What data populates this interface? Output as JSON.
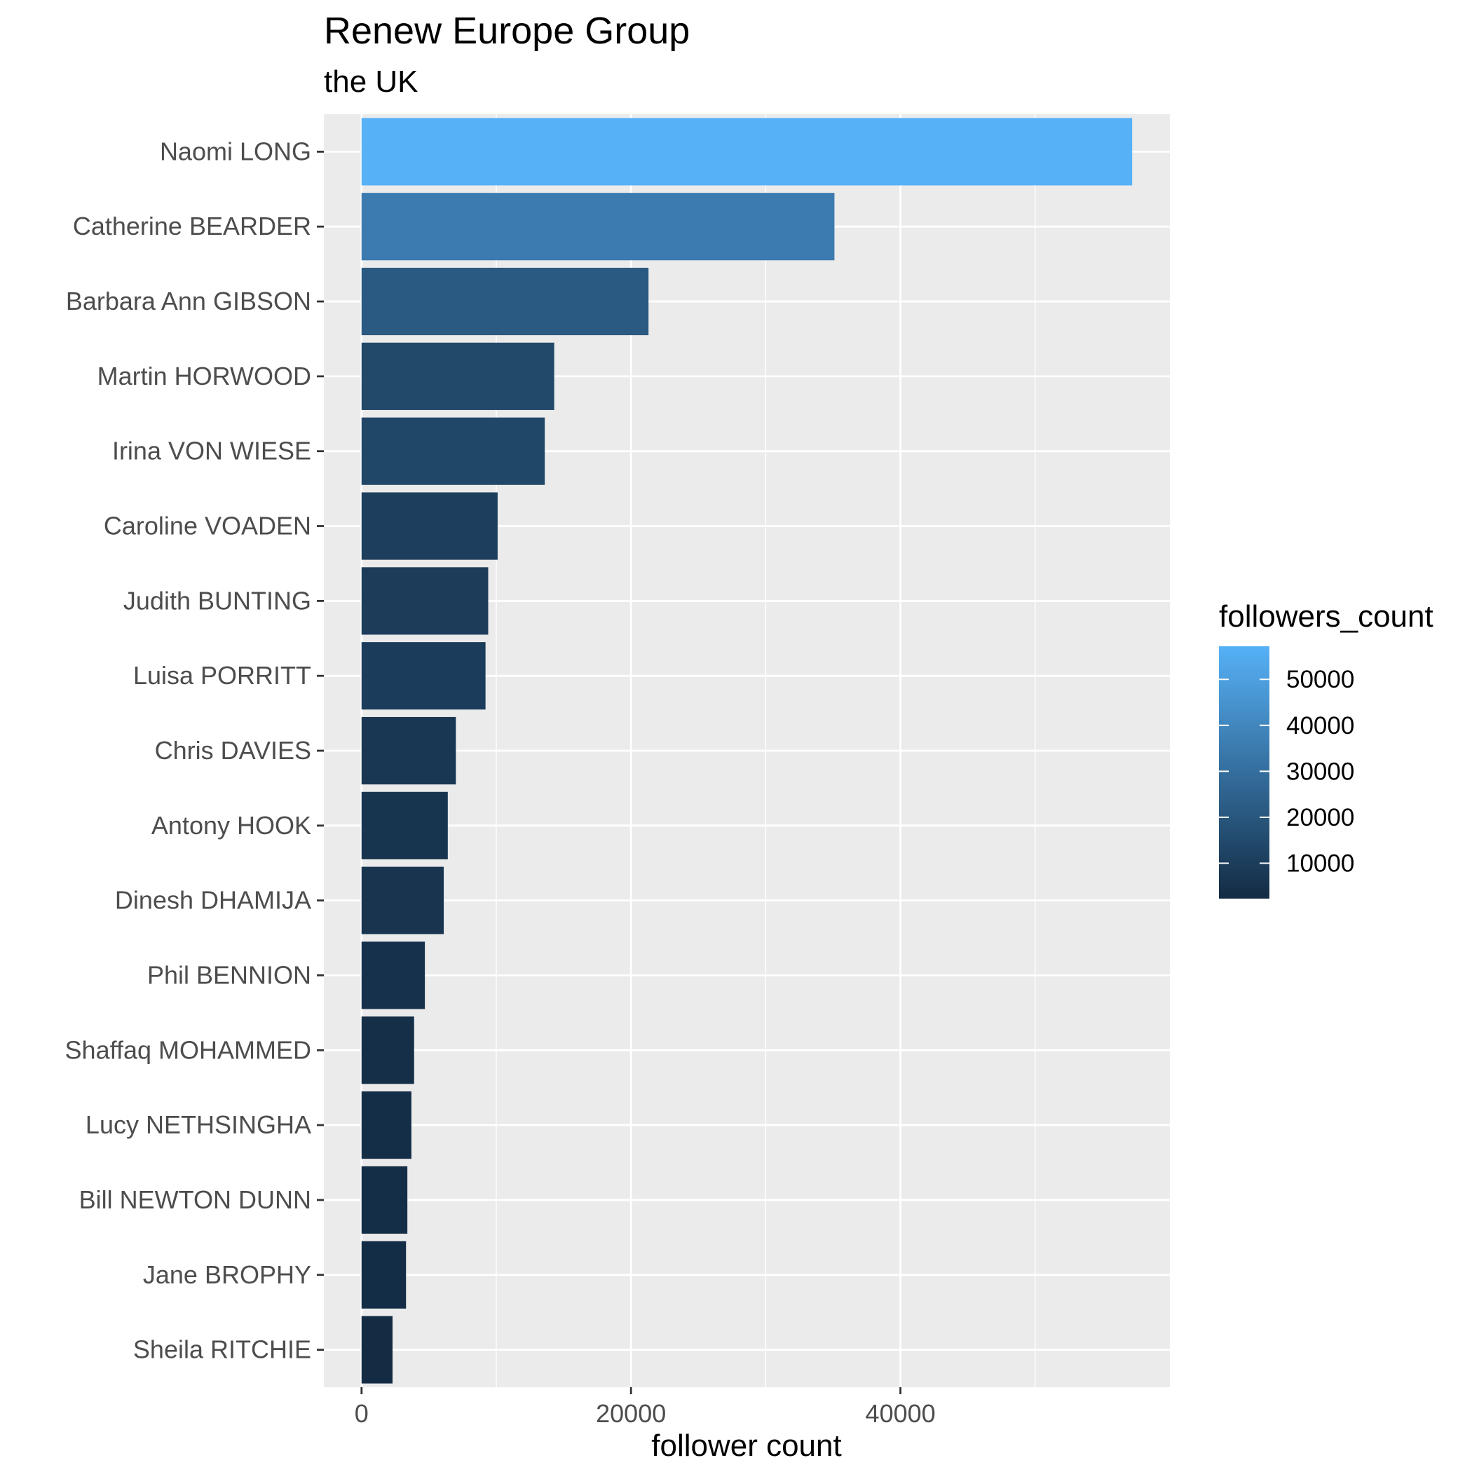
{
  "chart_data": {
    "type": "bar",
    "orientation": "horizontal",
    "title": "Renew Europe Group",
    "subtitle": "the UK",
    "xlabel": "follower count",
    "ylabel": "",
    "xlim": [
      -2800,
      60000
    ],
    "x_ticks": [
      0,
      20000,
      40000
    ],
    "x_tick_labels": [
      "0",
      "20000",
      "40000"
    ],
    "grid": true,
    "categories": [
      "Naomi LONG",
      "Catherine BEARDER",
      "Barbara Ann GIBSON",
      "Martin HORWOOD",
      "Irina VON WIESE",
      "Caroline VOADEN",
      "Judith BUNTING",
      "Luisa PORRITT",
      "Chris DAVIES",
      "Antony HOOK",
      "Dinesh DHAMIJA",
      "Phil BENNION",
      "Shaffaq MOHAMMED",
      "Lucy NETHSINGHA",
      "Bill NEWTON DUNN",
      "Jane BROPHY",
      "Sheila RITCHIE"
    ],
    "values": [
      57200,
      35100,
      21300,
      14300,
      13600,
      10100,
      9400,
      9200,
      7000,
      6400,
      6100,
      4700,
      3900,
      3700,
      3400,
      3300,
      2300
    ],
    "legend": {
      "title": "followers_count",
      "position": "right",
      "min": 2300,
      "max": 57200,
      "low_color": "#132B43",
      "high_color": "#56B1F7",
      "ticks": [
        10000,
        20000,
        30000,
        40000,
        50000
      ],
      "tick_labels": [
        "10000",
        "20000",
        "30000",
        "40000",
        "50000"
      ]
    },
    "colors": {
      "panel_background": "#EBEBEB",
      "grid_line": "#FFFFFF",
      "tick_color": "#333333"
    }
  }
}
